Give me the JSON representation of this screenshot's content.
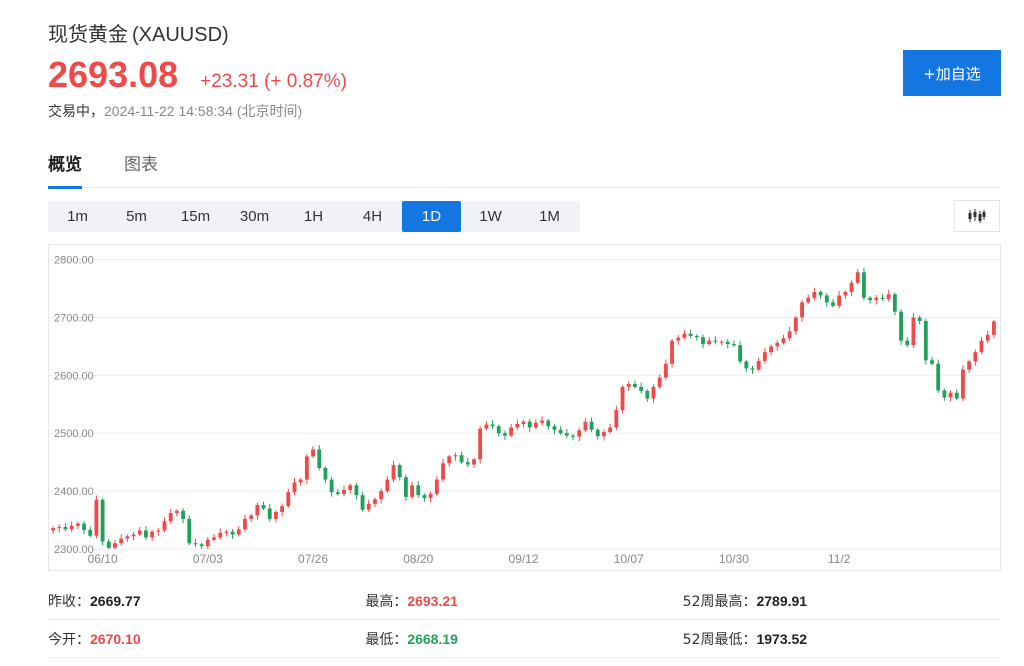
{
  "quote": {
    "name": "现货黄金",
    "code": "(XAUUSD)",
    "price": "2693.08",
    "change": "+23.31 (+ 0.87%)",
    "status": "交易中，",
    "timestamp": "2024-11-22 14:58:34 (北京时间)"
  },
  "add_button": {
    "label": "+加自选"
  },
  "tabs": [
    {
      "label": "概览",
      "active": true
    },
    {
      "label": "图表",
      "active": false
    }
  ],
  "periods": [
    {
      "label": "1m"
    },
    {
      "label": "5m"
    },
    {
      "label": "15m"
    },
    {
      "label": "30m"
    },
    {
      "label": "1H"
    },
    {
      "label": "4H"
    },
    {
      "label": "1D",
      "active": true
    },
    {
      "label": "1W"
    },
    {
      "label": "1M"
    }
  ],
  "chart_type_icon": "candlestick-icon",
  "colors": {
    "up": "#ee4a4a",
    "down": "#21a05c",
    "accent": "#1476e0"
  },
  "chart_data": {
    "type": "candlestick",
    "title": "",
    "xlabel": "",
    "ylabel": "",
    "ylim": [
      2300,
      2820
    ],
    "yticks": [
      2300,
      2400,
      2500,
      2600,
      2700,
      2800
    ],
    "ytick_labels": [
      "2300.00",
      "2400.00",
      "2500.00",
      "2600.00",
      "2700.00",
      "2800.00"
    ],
    "xtick_labels": [
      "06/10",
      "07/03",
      "07/26",
      "08/20",
      "09/12",
      "10/07",
      "10/30",
      "11/2"
    ],
    "xtick_index": [
      8,
      25,
      42,
      59,
      76,
      93,
      110,
      127
    ],
    "grid": true,
    "closes": [
      2336,
      2338,
      2334,
      2340,
      2344,
      2333,
      2323,
      2385,
      2313,
      2302,
      2310,
      2318,
      2322,
      2325,
      2332,
      2320,
      2330,
      2332,
      2348,
      2362,
      2366,
      2352,
      2310,
      2308,
      2305,
      2316,
      2320,
      2328,
      2330,
      2325,
      2334,
      2352,
      2358,
      2376,
      2370,
      2352,
      2364,
      2374,
      2398,
      2415,
      2420,
      2460,
      2472,
      2440,
      2420,
      2398,
      2395,
      2402,
      2410,
      2393,
      2368,
      2378,
      2386,
      2400,
      2420,
      2445,
      2424,
      2390,
      2410,
      2393,
      2388,
      2395,
      2420,
      2448,
      2460,
      2462,
      2450,
      2446,
      2455,
      2508,
      2515,
      2512,
      2500,
      2496,
      2510,
      2516,
      2520,
      2510,
      2518,
      2522,
      2512,
      2506,
      2500,
      2496,
      2494,
      2505,
      2520,
      2506,
      2495,
      2502,
      2510,
      2540,
      2580,
      2585,
      2580,
      2573,
      2560,
      2580,
      2596,
      2620,
      2660,
      2665,
      2672,
      2668,
      2666,
      2654,
      2660,
      2658,
      2658,
      2654,
      2652,
      2624,
      2612,
      2610,
      2625,
      2640,
      2650,
      2656,
      2664,
      2676,
      2700,
      2726,
      2734,
      2744,
      2738,
      2726,
      2720,
      2738,
      2744,
      2760,
      2778,
      2734,
      2730,
      2734,
      2732,
      2740,
      2710,
      2660,
      2652,
      2700,
      2694,
      2626,
      2620,
      2574,
      2562,
      2570,
      2560,
      2610,
      2624,
      2640,
      2660,
      2670,
      2693
    ]
  },
  "stats": {
    "prev_close_label": "昨收：",
    "prev_close": "2669.77",
    "high_label": "最高：",
    "high": "2693.21",
    "wk52_high_label": "52周最高：",
    "wk52_high": "2789.91",
    "open_label": "今开：",
    "open": "2670.10",
    "low_label": "最低：",
    "low": "2668.19",
    "wk52_low_label": "52周最低：",
    "wk52_low": "1973.52"
  }
}
